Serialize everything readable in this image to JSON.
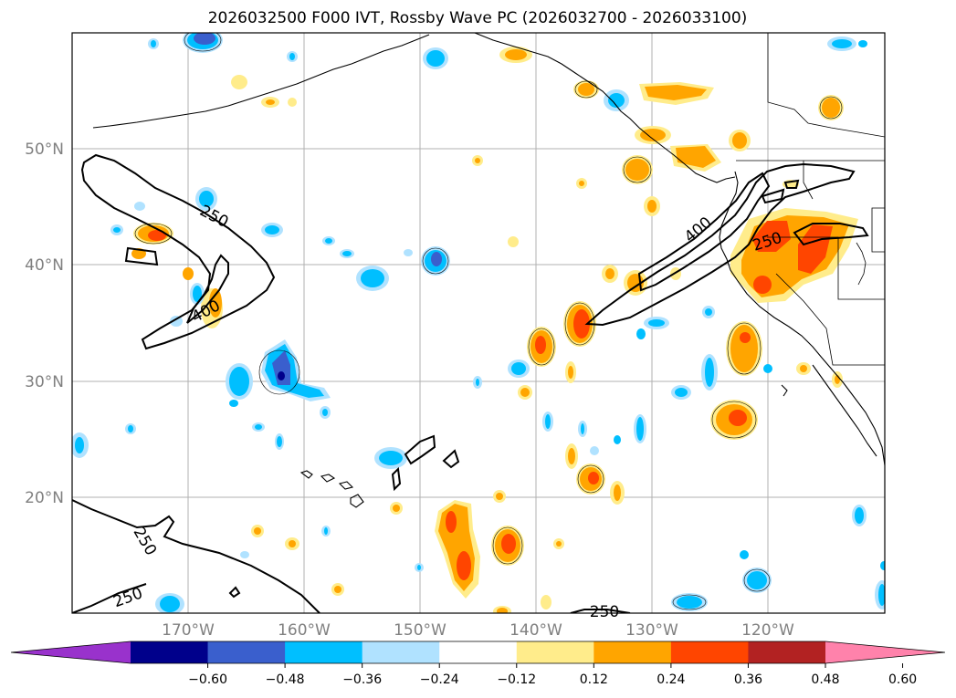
{
  "title": "2026032500 F000 IVT, Rossby Wave PC (2026032700 - 2026033100)",
  "lat_labels": [
    "50°N",
    "40°N",
    "30°N",
    "20°N"
  ],
  "lon_labels": [
    "170°W",
    "160°W",
    "150°W",
    "140°W",
    "130°W",
    "120°W"
  ],
  "ivt_contour_labels": [
    "250",
    "400",
    "250",
    "400",
    "250",
    "250",
    "250"
  ],
  "colorbar": {
    "tick_labels": [
      "−0.60",
      "−0.48",
      "−0.36",
      "−0.24",
      "−0.12",
      "0.12",
      "0.24",
      "0.36",
      "0.48",
      "0.60"
    ],
    "colors": [
      "#9932cc",
      "#00008b",
      "#3a5fcd",
      "#00bfff",
      "#b0e2ff",
      "#ffffff",
      "#ffec8b",
      "#ffa500",
      "#ff4500",
      "#b22222",
      "#ff82ab"
    ]
  },
  "map": {
    "lon_range": [
      -180,
      -110
    ],
    "lat_range": [
      10,
      60
    ],
    "gridline_lons": [
      -170,
      -160,
      -150,
      -140,
      -130,
      -120
    ],
    "gridline_lats": [
      20,
      30,
      40,
      50
    ]
  }
}
